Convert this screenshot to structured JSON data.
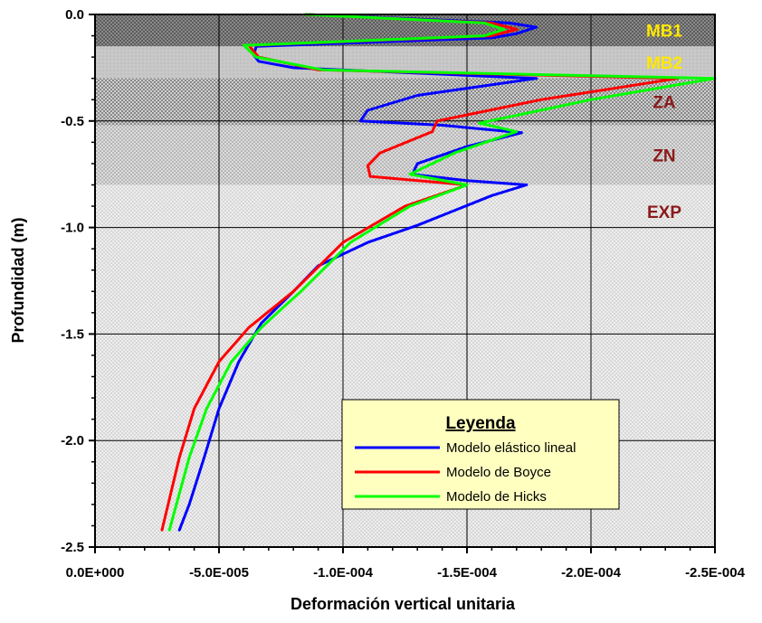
{
  "chart_data": {
    "type": "line",
    "xlabel": "Deformación vertical unitaria",
    "ylabel": "Profundidad (m)",
    "xlim": [
      0,
      -0.00025
    ],
    "ylim": [
      -2.5,
      0
    ],
    "x_ticks": [
      0,
      -5e-05,
      -0.0001,
      -0.00015,
      -0.0002,
      -0.00025
    ],
    "x_tick_labels": [
      "0.0E+000",
      "-5.0E-005",
      "-1.0E-004",
      "-1.5E-004",
      "-2.0E-004",
      "-2.5E-004"
    ],
    "y_ticks": [
      0,
      -0.5,
      -1.0,
      -1.5,
      -2.0,
      -2.5
    ],
    "y_tick_labels": [
      "0.0",
      "-0.5",
      "-1.0",
      "-1.5",
      "-2.0",
      "-2.5"
    ],
    "grid": true,
    "legend": {
      "title": "Leyenda",
      "placement": "bottom-right"
    },
    "layers": [
      {
        "label": "MB1",
        "top": 0.0,
        "bottom": -0.15,
        "label_color": "#FFE800",
        "fill": "#6e6e6e"
      },
      {
        "label": "MB2",
        "top": -0.15,
        "bottom": -0.3,
        "label_color": "#FFE800",
        "fill": "#bdbdbd"
      },
      {
        "label": "ZA",
        "top": -0.3,
        "bottom": -0.52,
        "label_color": "#8B1A1A",
        "fill": "#909090"
      },
      {
        "label": "ZN",
        "top": -0.52,
        "bottom": -0.8,
        "label_color": "#8B1A1A",
        "fill": "#c2c2c2"
      },
      {
        "label": "EXP",
        "top": -0.8,
        "bottom": -2.5,
        "label_color": "#8B1A1A",
        "fill": "#e2e2e2"
      }
    ],
    "series": [
      {
        "name": "Modelo elástico lineal",
        "color": "#0000FF",
        "points": [
          [
            -8.5e-05,
            0.0
          ],
          [
            -0.000167,
            -0.04
          ],
          [
            -0.000178,
            -0.06
          ],
          [
            -0.00017,
            -0.09
          ],
          [
            -0.00016,
            -0.11
          ],
          [
            -6.5e-05,
            -0.15
          ],
          [
            -6.4e-05,
            -0.19
          ],
          [
            -6.6e-05,
            -0.22
          ],
          [
            -8e-05,
            -0.25
          ],
          [
            -0.000178,
            -0.3
          ],
          [
            -0.00013,
            -0.38
          ],
          [
            -0.00011,
            -0.45
          ],
          [
            -0.000107,
            -0.5
          ],
          [
            -0.00014,
            -0.52
          ],
          [
            -0.000172,
            -0.555
          ],
          [
            -0.00015,
            -0.62
          ],
          [
            -0.00013,
            -0.7
          ],
          [
            -0.000128,
            -0.75
          ],
          [
            -0.00015,
            -0.78
          ],
          [
            -0.000174,
            -0.8
          ],
          [
            -0.00016,
            -0.85
          ],
          [
            -0.00013,
            -0.99
          ],
          [
            -0.00011,
            -1.07
          ],
          [
            -9e-05,
            -1.18
          ],
          [
            -8e-05,
            -1.3
          ],
          [
            -6.7e-05,
            -1.45
          ],
          [
            -5.8e-05,
            -1.63
          ],
          [
            -5e-05,
            -1.85
          ],
          [
            -4.4e-05,
            -2.08
          ],
          [
            -3.8e-05,
            -2.3
          ],
          [
            -3.4e-05,
            -2.42
          ]
        ]
      },
      {
        "name": "Modelo de Boyce",
        "color": "#FF0000",
        "points": [
          [
            -8.5e-05,
            0.0
          ],
          [
            -0.00016,
            -0.04
          ],
          [
            -0.00017,
            -0.07
          ],
          [
            -0.00016,
            -0.1
          ],
          [
            -6.2e-05,
            -0.145
          ],
          [
            -6.6e-05,
            -0.2
          ],
          [
            -9e-05,
            -0.26
          ],
          [
            -0.000235,
            -0.3
          ],
          [
            -0.00018,
            -0.4
          ],
          [
            -0.000138,
            -0.5
          ],
          [
            -0.000136,
            -0.55
          ],
          [
            -0.000115,
            -0.65
          ],
          [
            -0.00011,
            -0.71
          ],
          [
            -0.000111,
            -0.76
          ],
          [
            -0.00015,
            -0.8
          ],
          [
            -0.000125,
            -0.9
          ],
          [
            -0.0001,
            -1.07
          ],
          [
            -8e-05,
            -1.3
          ],
          [
            -6.2e-05,
            -1.47
          ],
          [
            -5e-05,
            -1.63
          ],
          [
            -4e-05,
            -1.85
          ],
          [
            -3.4e-05,
            -2.08
          ],
          [
            -2.7e-05,
            -2.42
          ]
        ]
      },
      {
        "name": "Modelo de Hicks",
        "color": "#00FF00",
        "points": [
          [
            -8.5e-05,
            0.0
          ],
          [
            -0.000157,
            -0.04
          ],
          [
            -0.000165,
            -0.07
          ],
          [
            -0.000157,
            -0.1
          ],
          [
            -6e-05,
            -0.145
          ],
          [
            -6.5e-05,
            -0.2
          ],
          [
            -9.2e-05,
            -0.26
          ],
          [
            -0.00025,
            -0.3
          ],
          [
            -0.0002,
            -0.4
          ],
          [
            -0.000155,
            -0.51
          ],
          [
            -0.00017,
            -0.55
          ],
          [
            -0.000145,
            -0.65
          ],
          [
            -0.000127,
            -0.75
          ],
          [
            -0.00015,
            -0.8
          ],
          [
            -0.000127,
            -0.9
          ],
          [
            -0.000103,
            -1.07
          ],
          [
            -8.3e-05,
            -1.3
          ],
          [
            -6.7e-05,
            -1.47
          ],
          [
            -5.5e-05,
            -1.63
          ],
          [
            -4.5e-05,
            -1.85
          ],
          [
            -3.8e-05,
            -2.08
          ],
          [
            -3e-05,
            -2.42
          ]
        ]
      }
    ]
  }
}
